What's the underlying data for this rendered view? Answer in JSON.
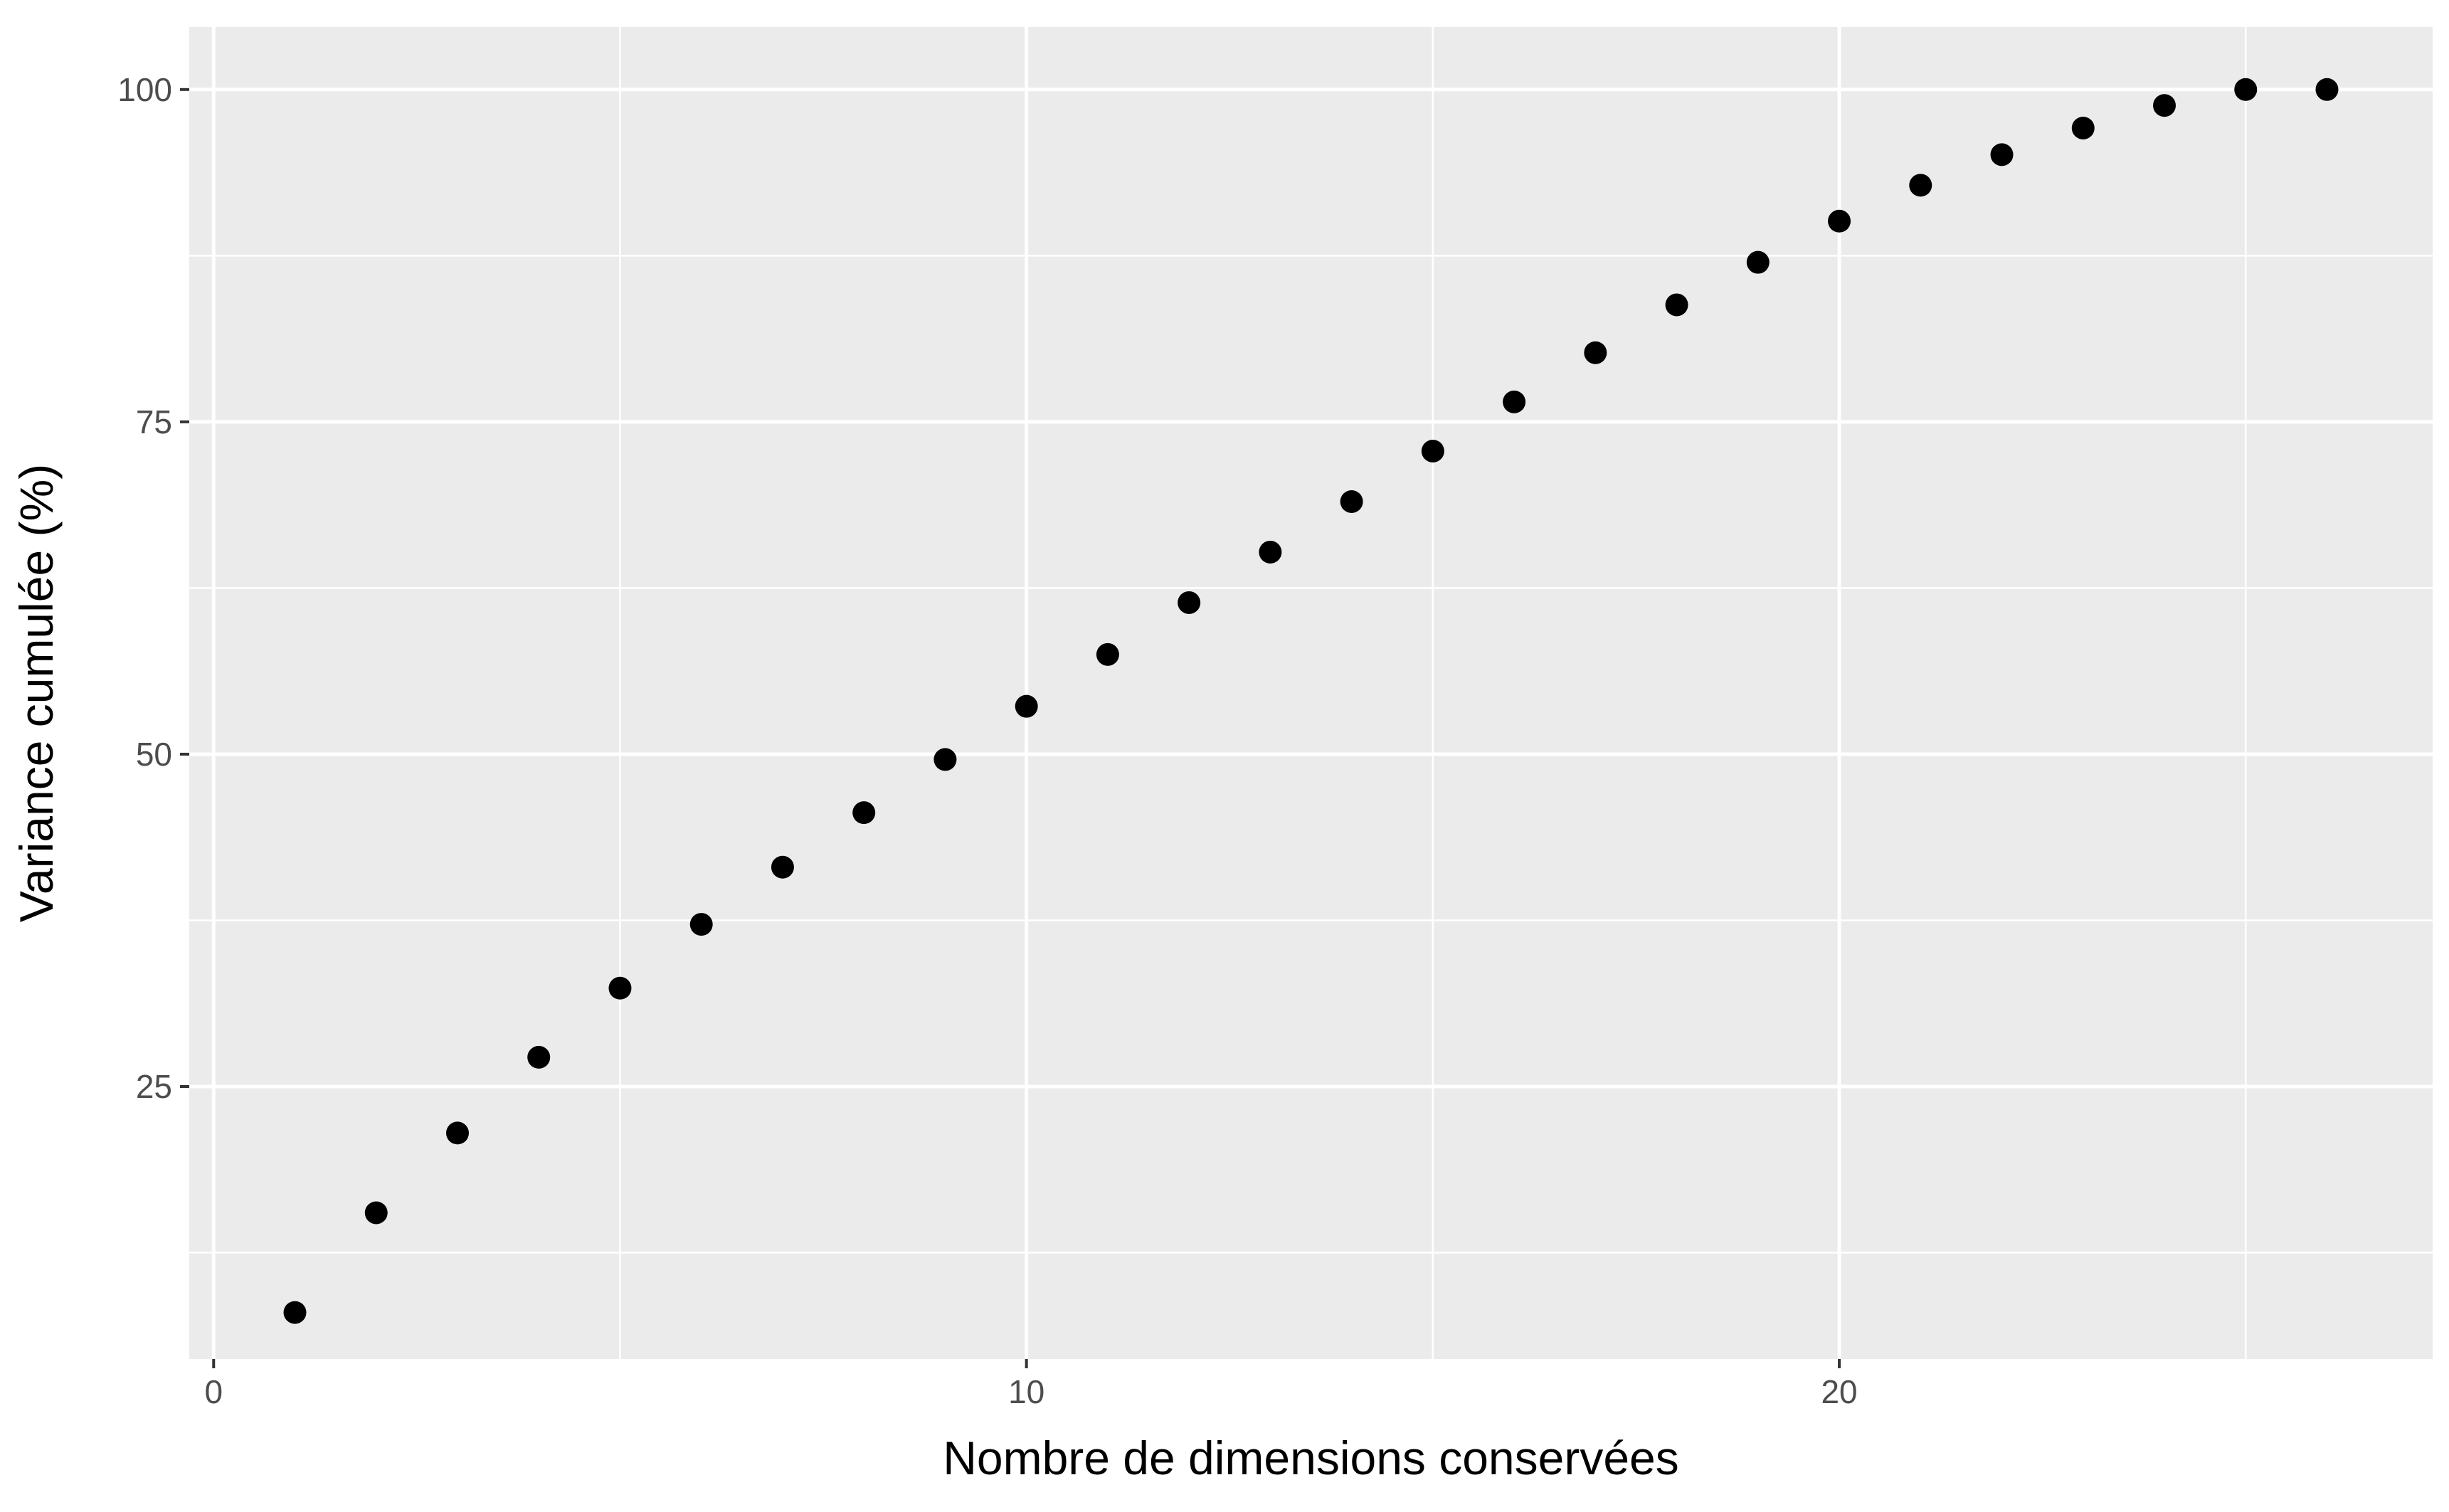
{
  "chart_data": {
    "type": "scatter",
    "title": "",
    "xlabel": "Nombre de dimensions conservées",
    "ylabel": "Variance cumulée (%)",
    "xlim": [
      -0.3,
      27.3
    ],
    "ylim": [
      4.5,
      104.7
    ],
    "x_ticks": [
      0,
      10,
      20
    ],
    "y_ticks": [
      25,
      50,
      75,
      100
    ],
    "x_minor_ticks": [
      5,
      15,
      25
    ],
    "y_minor_ticks": [
      12.5,
      37.5,
      62.5,
      87.5
    ],
    "grid": true,
    "legend": "none",
    "colors": {
      "panel_background": "#ebebeb",
      "grid": "#ffffff",
      "point": "#000000",
      "tick_text": "#4d4d4d",
      "tick_mark": "#333333"
    },
    "x": [
      1,
      2,
      3,
      4,
      5,
      6,
      7,
      8,
      9,
      10,
      11,
      12,
      13,
      14,
      15,
      16,
      17,
      18,
      19,
      20,
      21,
      22,
      23,
      24,
      25,
      26
    ],
    "y": [
      8.0,
      15.5,
      21.5,
      27.2,
      32.4,
      37.2,
      41.5,
      45.6,
      49.6,
      53.6,
      57.5,
      61.4,
      65.2,
      69.0,
      72.8,
      76.5,
      80.2,
      83.8,
      87.0,
      90.1,
      92.8,
      95.1,
      97.1,
      98.8,
      100.0,
      100.0
    ]
  }
}
